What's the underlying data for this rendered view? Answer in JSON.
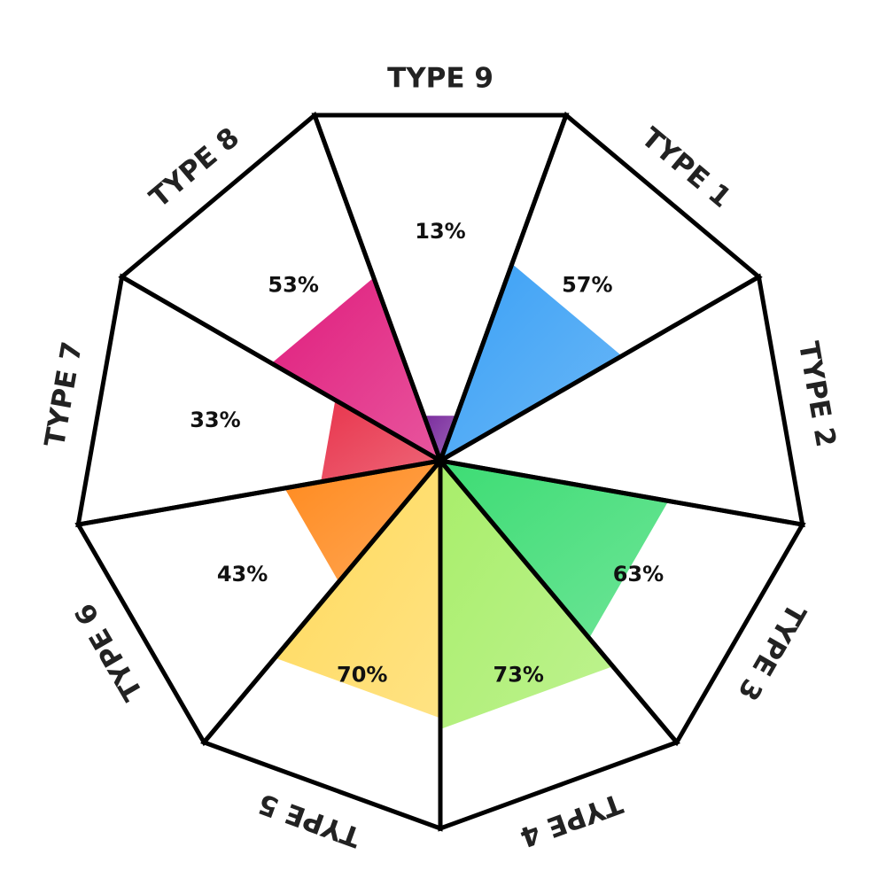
{
  "chart_data": {
    "type": "polar-area",
    "categories": [
      "TYPE 9",
      "TYPE 1",
      "TYPE 2",
      "TYPE 3",
      "TYPE 4",
      "TYPE 5",
      "TYPE 6",
      "TYPE 7",
      "TYPE 8"
    ],
    "values": [
      13,
      57,
      null,
      63,
      73,
      70,
      43,
      33,
      53
    ],
    "value_labels": [
      "13%",
      "57%",
      null,
      "63%",
      "73%",
      "70%",
      "43%",
      "33%",
      "53%"
    ],
    "colors": [
      "#7b2d9e",
      "#3aa0f5",
      "#cccccc",
      "#3ddc74",
      "#a8ee6a",
      "#ffd95a",
      "#ff8a1e",
      "#e8354d",
      "#e01d7d"
    ],
    "rlim": [
      0,
      100
    ]
  }
}
